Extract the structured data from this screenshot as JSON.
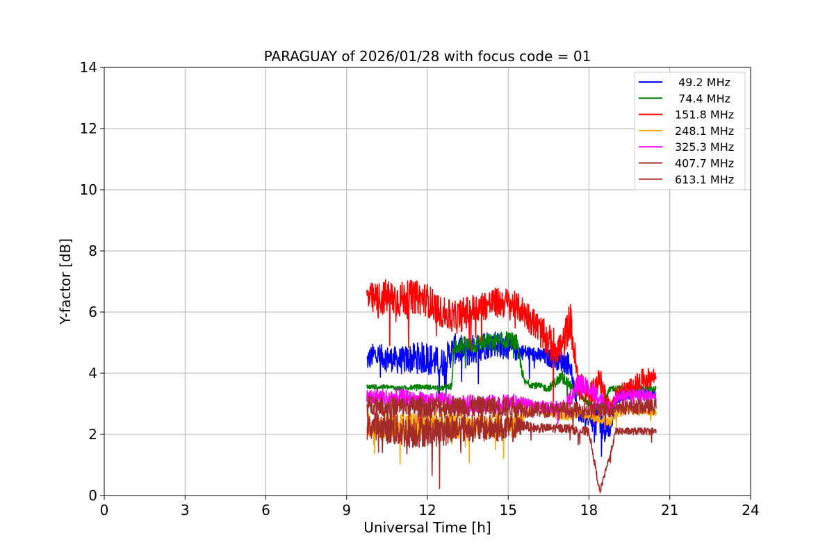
{
  "chart_data": {
    "type": "line",
    "title": "PARAGUAY of 2026/01/28 with focus code = 01",
    "xlabel": "Universal Time [h]",
    "ylabel": "Y-factor [dB]",
    "xlim": [
      0,
      24
    ],
    "ylim": [
      0,
      14
    ],
    "xticks": [
      0,
      3,
      6,
      9,
      12,
      15,
      18,
      21,
      24
    ],
    "yticks": [
      0,
      2,
      4,
      6,
      8,
      10,
      12,
      14
    ],
    "grid": true,
    "legend_position": "upper right",
    "series": [
      {
        "name": " 49.2 MHz",
        "color": "#0000ff",
        "x": [
          9.75,
          10.0,
          10.5,
          11.0,
          11.5,
          12.0,
          12.5,
          13.0,
          13.5,
          14.0,
          14.5,
          15.0,
          15.3,
          15.6,
          16.0,
          16.5,
          17.0,
          17.3,
          17.6,
          18.0,
          18.4,
          18.8,
          19.0,
          19.5,
          20.0,
          20.5
        ],
        "y": [
          4.4,
          4.6,
          4.5,
          4.4,
          4.5,
          4.5,
          4.3,
          4.8,
          4.7,
          4.9,
          5.0,
          4.8,
          4.7,
          4.7,
          4.6,
          4.5,
          4.4,
          4.3,
          2.6,
          2.5,
          2.4,
          2.1,
          3.2,
          3.3,
          3.4,
          3.3
        ],
        "noise": [
          0.35,
          0.4,
          0.4,
          0.45,
          0.5,
          0.55,
          0.5,
          0.5,
          0.5,
          0.5,
          0.45,
          0.4,
          0.3,
          0.25,
          0.25,
          0.3,
          0.35,
          0.4,
          0.2,
          0.2,
          0.8,
          0.15,
          0.2,
          0.15,
          0.15,
          0.15
        ]
      },
      {
        "name": " 74.4 MHz",
        "color": "#008000",
        "x": [
          9.75,
          10.0,
          10.5,
          11.0,
          11.5,
          12.0,
          12.5,
          12.9,
          13.0,
          13.5,
          14.0,
          14.5,
          15.0,
          15.3,
          15.6,
          16.0,
          16.5,
          17.0,
          17.3,
          17.6,
          18.0,
          18.4,
          18.8,
          19.0,
          19.5,
          20.0,
          20.5
        ],
        "y": [
          3.55,
          3.55,
          3.55,
          3.5,
          3.55,
          3.55,
          3.5,
          3.6,
          4.9,
          4.9,
          5.0,
          5.0,
          5.1,
          5.0,
          3.7,
          3.6,
          3.5,
          3.9,
          3.6,
          3.3,
          3.0,
          2.9,
          3.5,
          3.5,
          3.5,
          3.5,
          3.5
        ],
        "noise": [
          0.08,
          0.08,
          0.08,
          0.08,
          0.08,
          0.08,
          0.08,
          0.1,
          0.3,
          0.3,
          0.3,
          0.3,
          0.3,
          0.3,
          0.12,
          0.12,
          0.12,
          0.2,
          0.15,
          0.1,
          0.1,
          0.1,
          0.12,
          0.1,
          0.1,
          0.1,
          0.1
        ]
      },
      {
        "name": "151.8 MHz",
        "color": "#ff0000",
        "x": [
          9.75,
          10.0,
          10.5,
          11.0,
          11.5,
          12.0,
          12.5,
          13.0,
          13.5,
          14.0,
          14.5,
          15.0,
          15.3,
          15.6,
          16.0,
          16.5,
          17.0,
          17.3,
          17.6,
          18.0,
          18.4,
          18.8,
          19.0,
          19.5,
          20.0,
          20.5
        ],
        "y": [
          6.5,
          6.4,
          6.5,
          6.4,
          6.5,
          6.4,
          6.0,
          5.8,
          6.0,
          6.2,
          6.3,
          6.3,
          6.2,
          6.0,
          5.6,
          5.0,
          4.8,
          5.8,
          3.6,
          3.3,
          3.8,
          2.8,
          3.3,
          3.5,
          3.8,
          3.9
        ],
        "noise": [
          0.5,
          0.55,
          0.6,
          0.6,
          0.55,
          0.55,
          0.5,
          0.55,
          0.55,
          0.5,
          0.5,
          0.5,
          0.45,
          0.5,
          0.5,
          0.6,
          0.6,
          0.6,
          0.5,
          0.4,
          0.4,
          0.3,
          0.3,
          0.3,
          0.35,
          0.3
        ]
      },
      {
        "name": "248.1 MHz",
        "color": "#ffa500",
        "x": [
          9.75,
          10.0,
          10.5,
          11.0,
          11.5,
          12.0,
          12.5,
          13.0,
          13.5,
          14.0,
          14.5,
          15.0,
          15.3,
          15.6,
          16.0,
          16.5,
          17.0,
          17.3,
          17.6,
          18.0,
          18.4,
          18.8,
          19.0,
          19.5,
          20.0,
          20.5
        ],
        "y": [
          2.3,
          2.3,
          2.3,
          2.3,
          2.3,
          2.3,
          2.3,
          2.3,
          2.3,
          2.3,
          2.3,
          2.3,
          2.3,
          2.6,
          2.9,
          2.8,
          2.6,
          2.6,
          2.7,
          2.6,
          2.5,
          2.4,
          2.7,
          2.8,
          2.8,
          2.7
        ],
        "noise": [
          0.4,
          0.4,
          0.45,
          0.45,
          0.45,
          0.45,
          0.45,
          0.45,
          0.4,
          0.4,
          0.4,
          0.4,
          0.4,
          0.2,
          0.15,
          0.15,
          0.15,
          0.15,
          0.15,
          0.15,
          0.15,
          0.15,
          0.15,
          0.15,
          0.15,
          0.15
        ]
      },
      {
        "name": "325.3 MHz",
        "color": "#ff00ff",
        "x": [
          9.75,
          10.0,
          10.5,
          11.0,
          11.5,
          12.0,
          12.5,
          13.0,
          13.5,
          14.0,
          14.5,
          15.0,
          15.3,
          15.6,
          16.0,
          16.5,
          17.0,
          17.3,
          17.6,
          18.0,
          18.4,
          18.8,
          19.0,
          19.5,
          20.0,
          20.5
        ],
        "y": [
          3.2,
          3.2,
          3.2,
          3.2,
          3.1,
          3.1,
          3.1,
          3.0,
          3.0,
          3.0,
          3.0,
          3.0,
          3.0,
          3.0,
          2.9,
          2.9,
          2.9,
          3.2,
          3.6,
          3.5,
          3.2,
          2.8,
          3.2,
          3.3,
          3.3,
          3.2
        ],
        "noise": [
          0.3,
          0.3,
          0.3,
          0.3,
          0.3,
          0.3,
          0.3,
          0.3,
          0.3,
          0.3,
          0.3,
          0.3,
          0.35,
          0.2,
          0.2,
          0.2,
          0.2,
          0.3,
          0.4,
          0.3,
          0.3,
          0.2,
          0.2,
          0.2,
          0.2,
          0.2
        ]
      },
      {
        "name": "407.7 MHz",
        "color": "#a52a2a",
        "x": [
          9.75,
          10.0,
          10.5,
          11.0,
          11.5,
          12.0,
          12.5,
          13.0,
          13.5,
          14.0,
          14.5,
          15.0,
          15.3,
          15.6,
          16.0,
          16.5,
          17.0,
          17.3,
          17.6,
          18.0,
          18.4,
          18.8,
          19.0,
          19.5,
          20.0,
          20.5
        ],
        "y": [
          2.9,
          3.0,
          2.9,
          2.9,
          2.9,
          2.9,
          2.9,
          2.9,
          2.9,
          2.9,
          2.9,
          2.9,
          2.9,
          2.8,
          2.8,
          2.8,
          2.8,
          2.8,
          2.8,
          2.8,
          2.8,
          2.8,
          2.9,
          2.9,
          2.9,
          2.9
        ],
        "noise": [
          0.35,
          0.35,
          0.35,
          0.35,
          0.35,
          0.35,
          0.35,
          0.35,
          0.35,
          0.35,
          0.35,
          0.35,
          0.35,
          0.25,
          0.25,
          0.25,
          0.25,
          0.25,
          0.25,
          0.25,
          0.25,
          0.25,
          0.25,
          0.25,
          0.25,
          0.25
        ]
      },
      {
        "name": "613.1 MHz",
        "color": "#a52a2a",
        "x": [
          9.75,
          10.0,
          10.5,
          11.0,
          11.5,
          12.0,
          12.5,
          13.0,
          13.5,
          14.0,
          14.5,
          15.0,
          15.3,
          15.6,
          16.0,
          16.5,
          17.0,
          17.3,
          17.6,
          18.0,
          18.4,
          18.8,
          19.0,
          19.5,
          20.0,
          20.5
        ],
        "y": [
          2.2,
          2.3,
          2.2,
          2.1,
          2.1,
          2.1,
          2.1,
          2.2,
          2.2,
          2.2,
          2.2,
          2.2,
          2.2,
          2.3,
          2.2,
          2.2,
          2.2,
          2.2,
          2.1,
          2.1,
          0.1,
          1.4,
          2.1,
          2.1,
          2.1,
          2.1
        ],
        "noise": [
          0.4,
          0.45,
          0.5,
          0.55,
          0.55,
          0.5,
          0.5,
          0.5,
          0.45,
          0.45,
          0.45,
          0.45,
          0.45,
          0.15,
          0.15,
          0.15,
          0.15,
          0.15,
          0.15,
          0.15,
          0.1,
          0.1,
          0.12,
          0.12,
          0.12,
          0.12
        ]
      }
    ]
  }
}
